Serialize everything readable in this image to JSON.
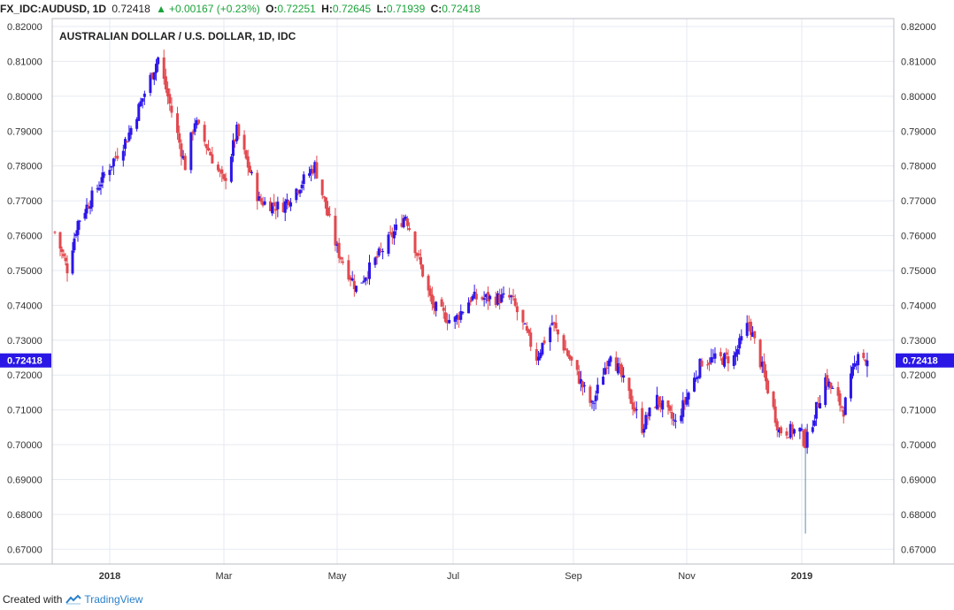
{
  "header": {
    "symbol": "FX_IDC:AUDUSD, 1D",
    "last": "0.72418",
    "change": "+0.00167 (+0.23%)",
    "open_label": "O:",
    "open": "0.72251",
    "high_label": "H:",
    "high": "0.72645",
    "low_label": "L:",
    "low": "0.71939",
    "close_label": "C:",
    "close": "0.72418"
  },
  "footer": {
    "created_with": "Created with",
    "brand": "TradingView"
  },
  "colors": {
    "up": "#2c16e8",
    "down": "#e2494f",
    "price_tag": "#2a17e6",
    "grid": "#e6eaf0",
    "wick": "#5b8fb0"
  },
  "chart_data": {
    "type": "candlestick",
    "title": "AUSTRALIAN DOLLAR / U.S. DOLLAR, 1D, IDC",
    "ylim": [
      0.665,
      0.8225
    ],
    "y_ticks": [
      0.67,
      0.68,
      0.69,
      0.7,
      0.71,
      0.72,
      0.73,
      0.74,
      0.75,
      0.76,
      0.77,
      0.78,
      0.79,
      0.8,
      0.81,
      0.82
    ],
    "x_ticks": [
      "2018",
      "Mar",
      "May",
      "Jul",
      "Sep",
      "Nov",
      "2019"
    ],
    "last_price_label": "0.72418",
    "key_points": [
      {
        "date": "2017-12-01",
        "close": 0.761
      },
      {
        "date": "2017-12-08",
        "close": 0.7505
      },
      {
        "date": "2017-12-14",
        "close": 0.764
      },
      {
        "date": "2018-01-01",
        "close": 0.78
      },
      {
        "date": "2018-01-10",
        "close": 0.788
      },
      {
        "date": "2018-01-26",
        "close": 0.811
      },
      {
        "date": "2018-02-09",
        "close": 0.78
      },
      {
        "date": "2018-02-14",
        "close": 0.793
      },
      {
        "date": "2018-03-01",
        "close": 0.775
      },
      {
        "date": "2018-03-08",
        "close": 0.79
      },
      {
        "date": "2018-03-20",
        "close": 0.77
      },
      {
        "date": "2018-04-01",
        "close": 0.768
      },
      {
        "date": "2018-04-19",
        "close": 0.78
      },
      {
        "date": "2018-05-01",
        "close": 0.756
      },
      {
        "date": "2018-05-11",
        "close": 0.745
      },
      {
        "date": "2018-05-25",
        "close": 0.756
      },
      {
        "date": "2018-06-06",
        "close": 0.766
      },
      {
        "date": "2018-06-20",
        "close": 0.74
      },
      {
        "date": "2018-07-01",
        "close": 0.735
      },
      {
        "date": "2018-07-10",
        "close": 0.742
      },
      {
        "date": "2018-07-31",
        "close": 0.742
      },
      {
        "date": "2018-08-13",
        "close": 0.725
      },
      {
        "date": "2018-08-21",
        "close": 0.735
      },
      {
        "date": "2018-09-11",
        "close": 0.711
      },
      {
        "date": "2018-09-21",
        "close": 0.727
      },
      {
        "date": "2018-10-08",
        "close": 0.705
      },
      {
        "date": "2018-10-16",
        "close": 0.713
      },
      {
        "date": "2018-10-26",
        "close": 0.706
      },
      {
        "date": "2018-11-09",
        "close": 0.724
      },
      {
        "date": "2018-11-26",
        "close": 0.725
      },
      {
        "date": "2018-12-04",
        "close": 0.735
      },
      {
        "date": "2018-12-12",
        "close": 0.72
      },
      {
        "date": "2018-12-20",
        "close": 0.704
      },
      {
        "date": "2018-12-31",
        "close": 0.704
      },
      {
        "date": "2019-01-03",
        "close": 0.7
      },
      {
        "date": "2019-01-14",
        "close": 0.719
      },
      {
        "date": "2019-01-24",
        "close": 0.71
      },
      {
        "date": "2019-02-01",
        "close": 0.727
      },
      {
        "date": "2019-02-06",
        "close": 0.724
      }
    ]
  }
}
